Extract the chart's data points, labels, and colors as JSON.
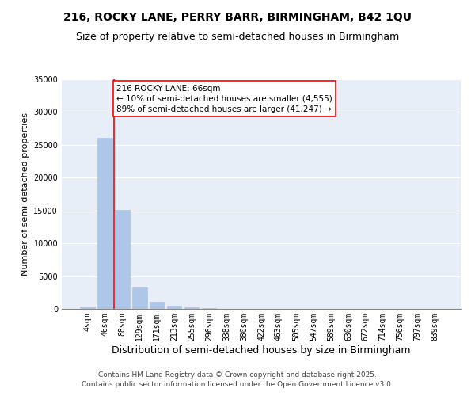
{
  "title": "216, ROCKY LANE, PERRY BARR, BIRMINGHAM, B42 1QU",
  "subtitle": "Size of property relative to semi-detached houses in Birmingham",
  "xlabel": "Distribution of semi-detached houses by size in Birmingham",
  "ylabel": "Number of semi-detached properties",
  "bar_labels": [
    "4sqm",
    "46sqm",
    "88sqm",
    "129sqm",
    "171sqm",
    "213sqm",
    "255sqm",
    "296sqm",
    "338sqm",
    "380sqm",
    "422sqm",
    "463sqm",
    "505sqm",
    "547sqm",
    "589sqm",
    "630sqm",
    "672sqm",
    "714sqm",
    "756sqm",
    "797sqm",
    "839sqm"
  ],
  "bar_values": [
    350,
    26100,
    15100,
    3300,
    1050,
    480,
    200,
    80,
    30,
    10,
    5,
    3,
    2,
    1,
    1,
    1,
    0,
    0,
    0,
    0,
    0
  ],
  "bar_color": "#aec6e8",
  "bar_edgecolor": "#aec6e8",
  "background_color": "#e8eef8",
  "grid_color": "#ffffff",
  "ylim": [
    0,
    35000
  ],
  "yticks": [
    0,
    5000,
    10000,
    15000,
    20000,
    25000,
    30000,
    35000
  ],
  "ytick_labels": [
    "0",
    "5000",
    "10000",
    "15000",
    "20000",
    "25000",
    "30000",
    "35000"
  ],
  "vline_x": 1.52,
  "property_line_label": "216 ROCKY LANE: 66sqm",
  "annotation_line1": "← 10% of semi-detached houses are smaller (4,555)",
  "annotation_line2": "89% of semi-detached houses are larger (41,247) →",
  "annotation_color": "red",
  "vline_color": "red",
  "footer_line1": "Contains HM Land Registry data © Crown copyright and database right 2025.",
  "footer_line2": "Contains public sector information licensed under the Open Government Licence v3.0.",
  "title_fontsize": 10,
  "subtitle_fontsize": 9,
  "xlabel_fontsize": 9,
  "ylabel_fontsize": 8,
  "tick_fontsize": 7,
  "annotation_fontsize": 7.5,
  "footer_fontsize": 6.5
}
